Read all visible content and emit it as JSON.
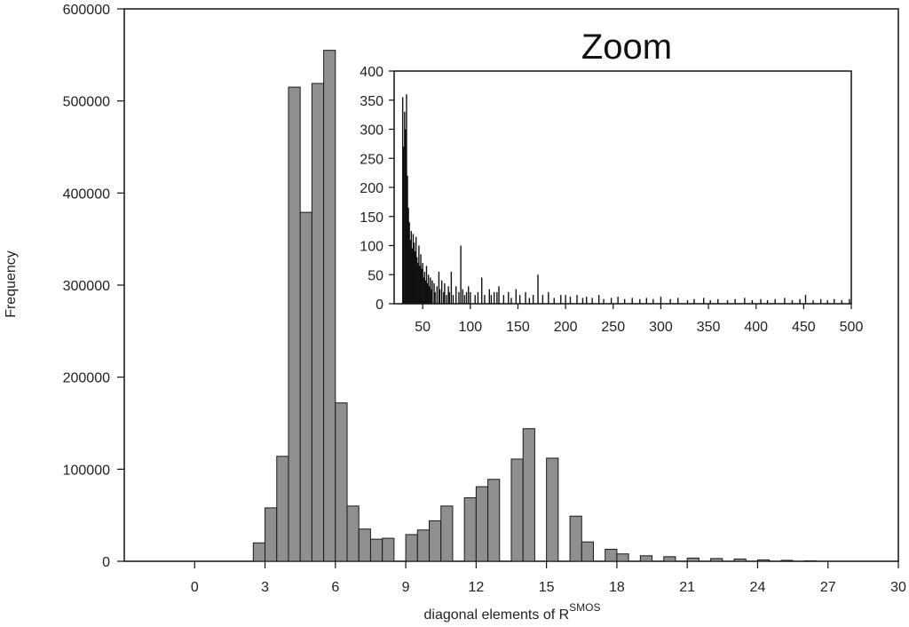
{
  "chart_data": [
    {
      "type": "bar",
      "role": "main",
      "title": "",
      "xlabel": "diagonal elements of R",
      "xlabel_superscript": "SMOS",
      "ylabel": "Frequency",
      "xlim": [
        -3,
        30
      ],
      "ylim": [
        0,
        600000
      ],
      "xticks": [
        "0",
        "3",
        "6",
        "9",
        "12",
        "15",
        "18",
        "21",
        "24",
        "27",
        "30"
      ],
      "yticks": [
        "0",
        "100000",
        "200000",
        "300000",
        "400000",
        "500000",
        "600000"
      ],
      "bin_width": 0.5,
      "x": [
        2.75,
        3.25,
        3.75,
        4.25,
        4.75,
        5.25,
        5.75,
        6.25,
        6.75,
        7.25,
        7.75,
        8.25,
        9.25,
        9.75,
        10.25,
        10.75,
        11.75,
        12.25,
        12.75,
        13.75,
        14.25,
        15.25,
        16.25,
        16.75,
        17.75,
        18.25,
        19.25,
        20.25,
        21.25,
        22.25,
        23.25,
        24.25,
        25.25,
        26.25
      ],
      "values": [
        20000,
        58000,
        114000,
        515000,
        379000,
        519000,
        555000,
        172000,
        60000,
        35000,
        24000,
        25000,
        29000,
        34000,
        44000,
        60000,
        69000,
        81000,
        89000,
        111000,
        144000,
        112000,
        49000,
        21000,
        13000,
        8000,
        6000,
        5000,
        3500,
        3000,
        2500,
        1500,
        1000,
        500
      ],
      "colors": {
        "bar_fill": "#8f8f8f",
        "bar_stroke": "#1a1a1a",
        "axis": "#111111"
      },
      "grid": false
    },
    {
      "type": "bar",
      "role": "inset",
      "title": "Zoom",
      "xlim": [
        20,
        500
      ],
      "ylim": [
        0,
        400
      ],
      "xticks": [
        "50",
        "100",
        "150",
        "200",
        "250",
        "300",
        "350",
        "400",
        "450",
        "500"
      ],
      "yticks": [
        "0",
        "50",
        "100",
        "150",
        "200",
        "250",
        "300",
        "350",
        "400"
      ],
      "x": [
        29,
        30,
        31,
        32,
        33,
        34,
        35,
        36,
        37,
        38,
        39,
        40,
        41,
        42,
        43,
        44,
        45,
        46,
        47,
        48,
        49,
        50,
        51,
        52,
        53,
        54,
        55,
        56,
        57,
        58,
        59,
        60,
        62,
        63,
        65,
        67,
        68,
        70,
        72,
        73,
        75,
        77,
        78,
        80,
        82,
        85,
        88,
        90,
        92,
        94,
        96,
        98,
        100,
        105,
        108,
        112,
        115,
        120,
        122,
        125,
        128,
        130,
        135,
        140,
        143,
        148,
        152,
        158,
        162,
        166,
        171,
        176,
        182,
        188,
        195,
        200,
        205,
        212,
        218,
        222,
        228,
        235,
        240,
        248,
        255,
        262,
        270,
        278,
        285,
        292,
        300,
        310,
        318,
        328,
        335,
        345,
        352,
        360,
        370,
        378,
        388,
        396,
        405,
        412,
        420,
        430,
        438,
        446,
        452,
        460,
        468,
        475,
        482,
        490,
        498
      ],
      "values": [
        355,
        270,
        330,
        300,
        360,
        220,
        165,
        140,
        110,
        125,
        95,
        120,
        105,
        90,
        115,
        80,
        70,
        100,
        65,
        85,
        60,
        70,
        45,
        55,
        40,
        65,
        35,
        50,
        30,
        45,
        25,
        40,
        35,
        20,
        30,
        55,
        25,
        40,
        20,
        35,
        15,
        30,
        20,
        55,
        15,
        30,
        20,
        100,
        25,
        15,
        20,
        30,
        20,
        15,
        20,
        45,
        15,
        25,
        15,
        20,
        20,
        30,
        15,
        20,
        10,
        25,
        15,
        20,
        10,
        15,
        50,
        15,
        20,
        10,
        15,
        15,
        12,
        15,
        10,
        12,
        10,
        15,
        8,
        10,
        12,
        8,
        10,
        8,
        10,
        8,
        12,
        8,
        10,
        6,
        8,
        10,
        6,
        8,
        6,
        8,
        10,
        6,
        8,
        6,
        8,
        10,
        6,
        8,
        15,
        6,
        8,
        6,
        8,
        6,
        8
      ],
      "colors": {
        "bar_fill": "#111111",
        "bar_stroke": "#111111",
        "axis": "#111111"
      },
      "grid": false
    }
  ]
}
